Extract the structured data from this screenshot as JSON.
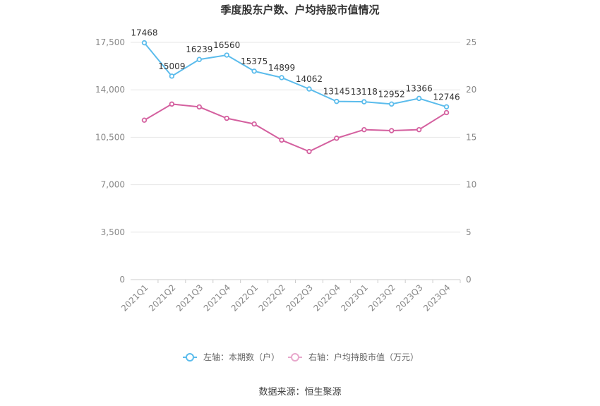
{
  "chart_data": {
    "type": "line",
    "title": "季度股东户数、户均持股市值情况",
    "categories": [
      "2021Q1",
      "2021Q2",
      "2021Q3",
      "2021Q4",
      "2022Q1",
      "2022Q2",
      "2022Q3",
      "2022Q4",
      "2023Q1",
      "2023Q2",
      "2023Q3",
      "2023Q4"
    ],
    "left_axis": {
      "ylim": [
        0,
        17500
      ],
      "ticks": [
        0,
        3500,
        7000,
        10500,
        14000,
        17500
      ],
      "tick_labels": [
        "0",
        "3,500",
        "7,000",
        "10,500",
        "14,000",
        "17,500"
      ]
    },
    "right_axis": {
      "ylim": [
        0,
        25
      ],
      "ticks": [
        0,
        5,
        10,
        15,
        20,
        25
      ],
      "tick_labels": [
        "0",
        "5",
        "10",
        "15",
        "20",
        "25"
      ]
    },
    "series": [
      {
        "name": "左轴：本期数（户）",
        "axis": "left",
        "color": "#5bbcec",
        "values": [
          17468,
          15009,
          16239,
          16560,
          15375,
          14899,
          14062,
          13145,
          13118,
          12952,
          13366,
          12746
        ],
        "labels": [
          "17468",
          "15009",
          "16239",
          "16560",
          "15375",
          "14899",
          "14062",
          "13145",
          "13118",
          "12952",
          "13366",
          "12746"
        ]
      },
      {
        "name": "右轴：户均持股市值（万元）",
        "axis": "right",
        "color": "#d4609f",
        "values": [
          16.8,
          18.5,
          18.2,
          17.0,
          16.4,
          14.7,
          13.5,
          14.9,
          15.8,
          15.7,
          15.8,
          17.6
        ]
      }
    ],
    "grid": true,
    "legend": "bottom-center"
  },
  "source": "数据来源：恒生聚源"
}
